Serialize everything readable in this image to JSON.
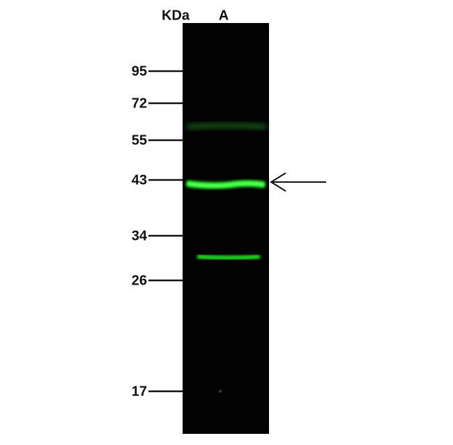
{
  "header": {
    "unit": "KDa",
    "lane": "A"
  },
  "markers": [
    95,
    72,
    55,
    43,
    34,
    26,
    17
  ]
}
